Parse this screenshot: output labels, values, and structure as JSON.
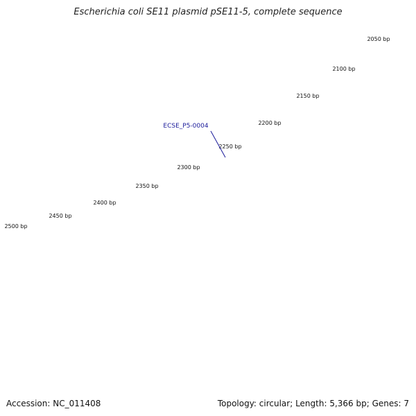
{
  "title": "Escherichia coli SE11 plasmid pSE11-5, complete sequence",
  "footer": {
    "accession": "Accession: NC_011408",
    "summary": "Topology: circular; Length: 5,366 bp; Genes: 7"
  },
  "plasmid": {
    "length_bp": 5366,
    "topology": "circular"
  },
  "colors": {
    "gene": "#0000e0",
    "gene_dark": "#00008a",
    "backbone": "#808080",
    "backbone_dark": "#555555",
    "ticks": "#1a8a1a",
    "gene_label": "#1a1a9a"
  },
  "ruler": {
    "major_labels": [
      "2050 bp",
      "2100 bp",
      "2150 bp",
      "2200 bp",
      "2250 bp",
      "2300 bp",
      "2350 bp",
      "2400 bp",
      "2450 bp",
      "2500 bp"
    ]
  },
  "genes": [
    {
      "label": "ECSE_P5-0004",
      "strand": "forward"
    }
  ]
}
